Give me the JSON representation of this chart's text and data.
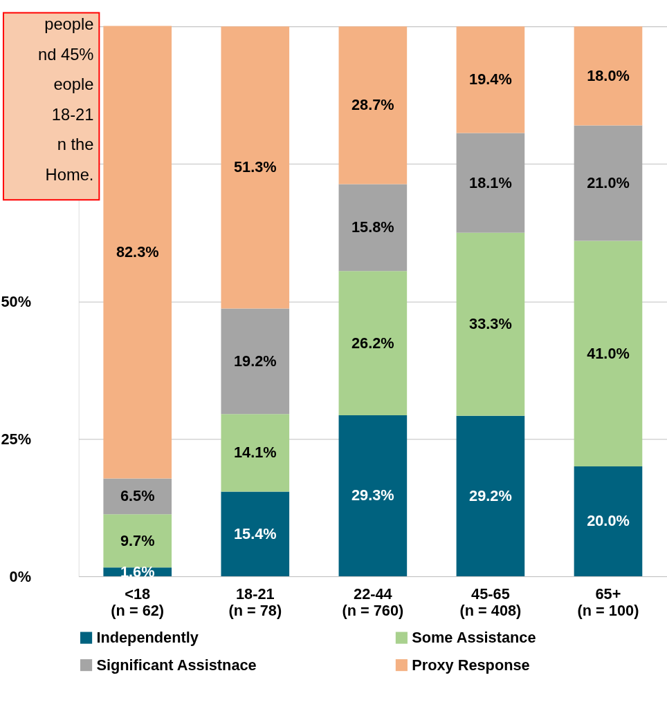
{
  "chart_data": {
    "type": "bar",
    "stacked": true,
    "categories": [
      "<18\n(n = 62)",
      "18-21\n(n = 78)",
      "22-44\n(n = 760)",
      "45-65\n(n = 408)",
      "65+\n(n = 100)"
    ],
    "series": [
      {
        "name": "Independently",
        "color": "#00627f",
        "values": [
          1.6,
          15.4,
          29.3,
          29.2,
          20.0
        ],
        "value_labels": [
          "1.6%",
          "15.4%",
          "29.3%",
          "29.2%",
          "20.0%"
        ]
      },
      {
        "name": "Some Assistance",
        "color": "#a9d18e",
        "values": [
          9.7,
          14.1,
          26.2,
          33.3,
          41.0
        ],
        "value_labels": [
          "9.7%",
          "14.1%",
          "26.2%",
          "33.3%",
          "41.0%"
        ]
      },
      {
        "name": "Significant Assistnace",
        "color": "#a5a5a5",
        "values": [
          6.5,
          19.2,
          15.8,
          18.1,
          21.0
        ],
        "value_labels": [
          "6.5%",
          "19.2%",
          "15.8%",
          "18.1%",
          "21.0%"
        ]
      },
      {
        "name": "Proxy Response",
        "color": "#f4b183",
        "values": [
          82.3,
          51.3,
          28.7,
          19.4,
          18.0
        ],
        "value_labels": [
          "82.3%",
          "51.3%",
          "28.7%",
          "19.4%",
          "18.0%"
        ]
      }
    ],
    "ylim": [
      0,
      100
    ],
    "yticks": [
      {
        "value": 0,
        "label": "0%"
      },
      {
        "value": 25,
        "label": "25%"
      },
      {
        "value": 50,
        "label": "50%"
      },
      {
        "value": 75,
        "label": null
      },
      {
        "value": 100,
        "label": null
      }
    ],
    "grid": "y",
    "legend": "bottom",
    "annotations": [
      "people\nnd 45%\neople\n18-21\nn the\nHome."
    ]
  }
}
